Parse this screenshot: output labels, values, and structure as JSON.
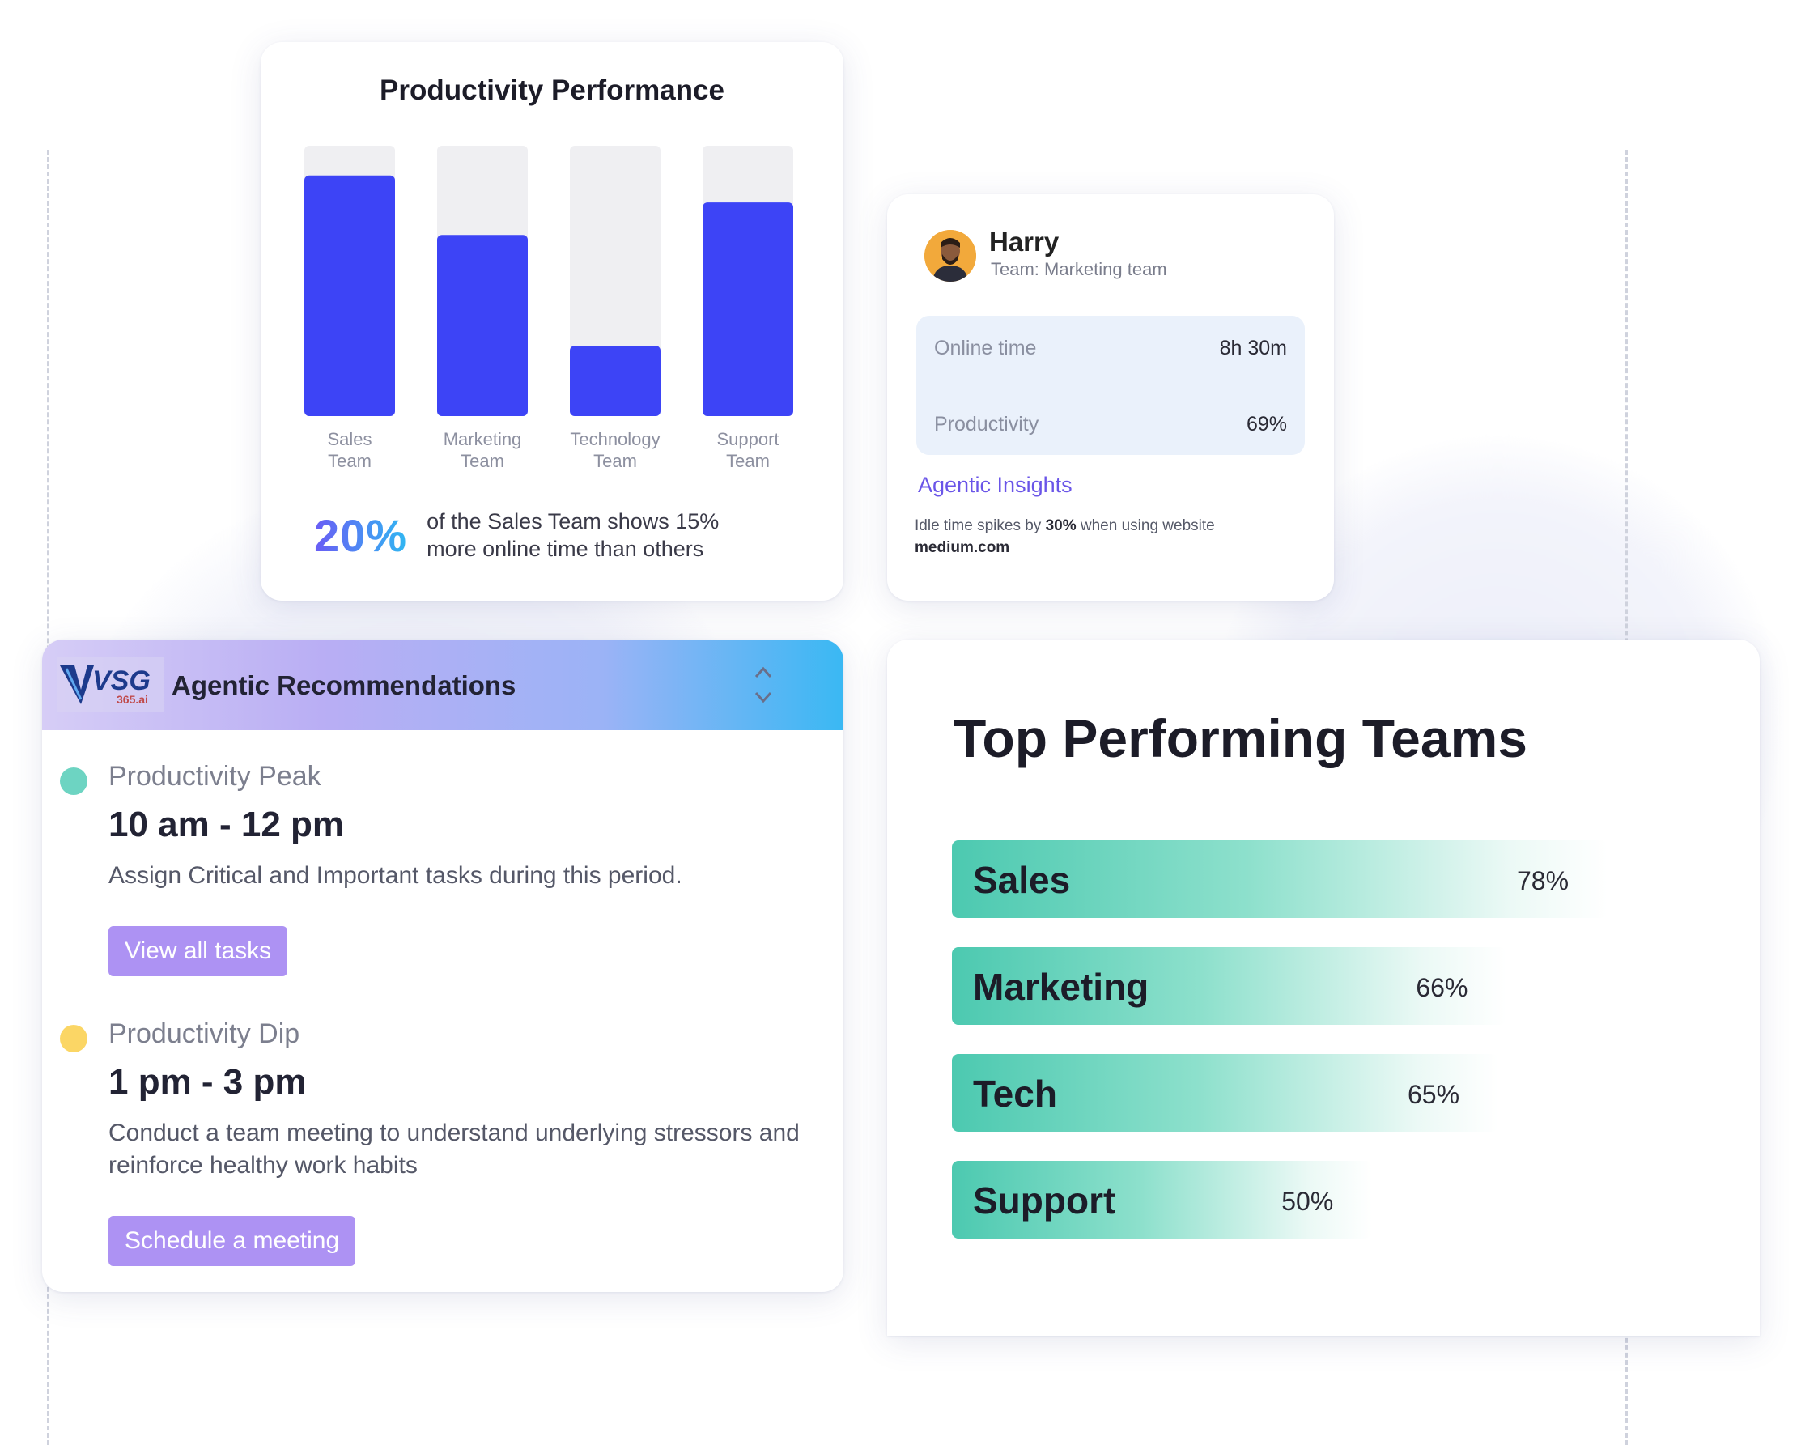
{
  "performance": {
    "title": "Productivity Performance",
    "highlight_value": "20%",
    "highlight_text": "of the Sales Team shows 15% more online time than others",
    "bar_color": "#3d44f6",
    "track_color": "#efeff2",
    "chart_data": {
      "type": "bar",
      "categories": [
        "Sales\nTeam",
        "Marketing\nTeam",
        "Technology\nTeam",
        "Support\nTeam"
      ],
      "values": [
        89,
        67,
        26,
        79
      ],
      "ylim": [
        0,
        100
      ]
    }
  },
  "user": {
    "name": "Harry",
    "team": "Team:  Marketing team",
    "stats": [
      {
        "label": "Online time",
        "value": "8h 30m"
      },
      {
        "label": "Productivity",
        "value": "69%"
      }
    ],
    "insights_title": "Agentic Insights",
    "insights_text_before": "Idle time spikes by ",
    "insights_bold": "30%",
    "insights_text_after": " when using website",
    "insights_site": "medium.com"
  },
  "recommendations": {
    "logo_text": "VSG",
    "logo_sub": "365.ai",
    "title": "Agentic Recommendations",
    "items": [
      {
        "label": "Productivity Peak",
        "time": "10 am - 12 pm",
        "description": "Assign Critical and Important tasks during this period.",
        "button": "View all tasks",
        "dot_color": "#6dd4c2"
      },
      {
        "label": "Productivity Dip",
        "time": "1 pm - 3 pm",
        "description": "Conduct a team meeting to understand underlying stressors and reinforce healthy work habits",
        "button": "Schedule a meeting",
        "dot_color": "#fbd665"
      }
    ]
  },
  "teams": {
    "title": "Top Performing Teams",
    "rows": [
      {
        "name": "Sales",
        "pct_label": "78%",
        "value": 78
      },
      {
        "name": "Marketing",
        "pct_label": "66%",
        "value": 66
      },
      {
        "name": "Tech",
        "pct_label": "65%",
        "value": 65
      },
      {
        "name": "Support",
        "pct_label": "50%",
        "value": 50
      }
    ]
  }
}
